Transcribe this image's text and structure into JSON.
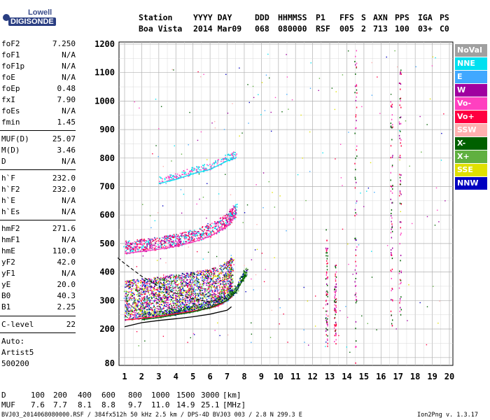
{
  "logo": {
    "line1": "Lowell",
    "line2": "DIGISONDE"
  },
  "header": {
    "station_label": "Station",
    "date_label": "YYYY DAY",
    "ddd_label": "DDD",
    "time_label": "HHMMSS",
    "p1_label": "P1",
    "ffs_label": "FFS",
    "s_label": "S",
    "axn_label": "AXN",
    "pps_label": "PPS",
    "iga_label": "IGA",
    "ps_label": "PS",
    "station": "Boa Vista",
    "date": "2014 Mar09",
    "ddd": "068",
    "time": "080000",
    "p1": "RSF",
    "ffs": "005",
    "s": "2",
    "axn": "713",
    "pps": "100",
    "iga": "03+",
    "ps": "C0"
  },
  "params_group1": [
    {
      "name": "foF2",
      "value": "7.250"
    },
    {
      "name": "foF1",
      "value": "N/A"
    },
    {
      "name": "foF1p",
      "value": "N/A"
    },
    {
      "name": "foE",
      "value": "N/A"
    },
    {
      "name": "foEp",
      "value": "0.48"
    },
    {
      "name": "fxI",
      "value": "7.90"
    },
    {
      "name": "foEs",
      "value": "N/A"
    },
    {
      "name": "fmin",
      "value": "1.45"
    }
  ],
  "params_group2": [
    {
      "name": "MUF(D)",
      "value": "25.07"
    },
    {
      "name": "M(D)",
      "value": "3.46"
    },
    {
      "name": "D",
      "value": "N/A"
    }
  ],
  "params_group3": [
    {
      "name": "h`F",
      "value": "232.0"
    },
    {
      "name": "h`F2",
      "value": "232.0"
    },
    {
      "name": "h`E",
      "value": "N/A"
    },
    {
      "name": "h`Es",
      "value": "N/A"
    }
  ],
  "params_group4": [
    {
      "name": "hmF2",
      "value": "271.6"
    },
    {
      "name": "hmF1",
      "value": "N/A"
    },
    {
      "name": "hmE",
      "value": "110.0"
    },
    {
      "name": "yF2",
      "value": "42.0"
    },
    {
      "name": "yF1",
      "value": "N/A"
    },
    {
      "name": "yE",
      "value": "20.0"
    },
    {
      "name": "B0",
      "value": "40.3"
    },
    {
      "name": "B1",
      "value": "2.25"
    }
  ],
  "params_group5": [
    {
      "name": "C-level",
      "value": "22"
    }
  ],
  "scaler": {
    "auto_label": "Auto:",
    "program": "Artist5",
    "version": "500200"
  },
  "legend": [
    {
      "label": "NoVal",
      "color": "#a0a0a0"
    },
    {
      "label": "NNE",
      "color": "#00e0f0"
    },
    {
      "label": "E",
      "color": "#40a8ff"
    },
    {
      "label": "W",
      "color": "#a000a0"
    },
    {
      "label": "Vo-",
      "color": "#ff40c0"
    },
    {
      "label": "Vo+",
      "color": "#ff0040"
    },
    {
      "label": "SSW",
      "color": "#ffb0b0"
    },
    {
      "label": "X-",
      "color": "#006000"
    },
    {
      "label": "X+",
      "color": "#60b040"
    },
    {
      "label": "SSE",
      "color": "#e0e000"
    },
    {
      "label": "NNW",
      "color": "#0000c0"
    }
  ],
  "bottom_table": {
    "d_label": "D",
    "d_values": [
      "100",
      "200",
      "400",
      "600",
      "800",
      "1000",
      "1500",
      "3000",
      "[km]"
    ],
    "muf_label": "MUF",
    "muf_values": [
      "7.6",
      "7.7",
      "8.1",
      "8.8",
      "9.7",
      "11.0",
      "14.9",
      "25.1",
      "[MHz]"
    ]
  },
  "footer": {
    "left": "BVJ03_2014068080000.RSF / 384fx512h 50 kHz 2.5 km / DPS-4D BVJ03 003 / 2.8 N 299.3 E",
    "right": "Ion2Png v. 1.3.17"
  },
  "chart_data": {
    "type": "scatter",
    "x_ticks": [
      1,
      2,
      3,
      4,
      5,
      6,
      7,
      8,
      9,
      10,
      11,
      12,
      13,
      14,
      15,
      16,
      17,
      18,
      19,
      20
    ],
    "y_ticks": [
      80,
      200,
      300,
      400,
      500,
      600,
      700,
      800,
      900,
      1000,
      1100,
      1200
    ],
    "xlim": [
      0.6,
      20.0
    ],
    "ylim": [
      80,
      1200
    ],
    "grid": true,
    "legend_position": "right",
    "traces": [
      {
        "name": "o-trace",
        "color": "#ff0040",
        "x": [
          1.0,
          1.5,
          2.0,
          2.5,
          3.0,
          3.5,
          4.0,
          4.5,
          5.0,
          5.5,
          6.0,
          6.5,
          7.0,
          7.3
        ],
        "y": [
          232,
          234,
          238,
          241,
          245,
          249,
          254,
          258,
          263,
          268,
          274,
          283,
          300,
          315
        ]
      },
      {
        "name": "x-trace",
        "color": "#006000",
        "x": [
          2.0,
          3.0,
          4.0,
          5.0,
          6.0,
          7.0,
          7.5,
          7.9,
          8.1
        ],
        "y": [
          233,
          240,
          250,
          260,
          275,
          300,
          330,
          370,
          390
        ]
      },
      {
        "name": "second-hop",
        "color": "#ff40c0",
        "x": [
          1.0,
          2.0,
          3.0,
          4.0,
          5.0,
          6.0,
          7.0,
          7.5
        ],
        "y": [
          465,
          472,
          480,
          490,
          505,
          525,
          560,
          600
        ]
      },
      {
        "name": "third-hop",
        "color": "#00e0f0",
        "x": [
          3.0,
          4.0,
          5.0,
          6.0,
          7.0,
          7.5
        ],
        "y": [
          710,
          725,
          745,
          760,
          790,
          800
        ]
      }
    ],
    "profile_solid": {
      "x": [
        1.0,
        2.0,
        3.0,
        4.0,
        5.0,
        6.0,
        7.0,
        7.25
      ],
      "y": [
        208,
        222,
        230,
        236,
        243,
        252,
        266,
        278
      ]
    },
    "profile_dashed": {
      "x": [
        0.6,
        1.0,
        2.0,
        3.0,
        4.0,
        5.0,
        6.0,
        7.0
      ],
      "y": [
        450,
        430,
        385,
        350,
        325,
        305,
        295,
        310
      ]
    }
  }
}
